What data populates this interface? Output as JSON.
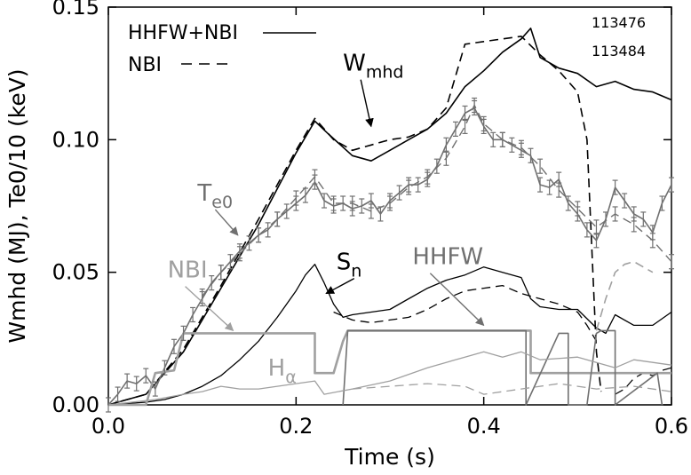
{
  "chart_data": {
    "type": "line",
    "title": "",
    "xlabel": "Time (s)",
    "ylabel": "Wmhd (MJ), Te0/10 (keV)",
    "xlim": [
      0.0,
      0.6
    ],
    "ylim": [
      0.0,
      0.15
    ],
    "xticks": [
      "0.0",
      "0.2",
      "0.4",
      "0.6"
    ],
    "yticks": [
      "0.00",
      "0.05",
      "0.10",
      "0.15"
    ],
    "grid": false,
    "legend_position": "top-left",
    "legend": [
      {
        "label": "HHFW+NBI",
        "style": "solid",
        "shot": "113476"
      },
      {
        "label": "NBI",
        "style": "dashed",
        "shot": "113484"
      }
    ],
    "annotations": [
      {
        "label": "W",
        "sub": "mhd",
        "color": "#000000",
        "x": 0.25,
        "y": 0.126,
        "arrow_to": [
          0.28,
          0.105
        ]
      },
      {
        "label": "T",
        "sub": "e0",
        "color": "#707070",
        "x": 0.095,
        "y": 0.077,
        "arrow_to": [
          0.138,
          0.064
        ]
      },
      {
        "label": "S",
        "sub": "n",
        "color": "#000000",
        "x": 0.243,
        "y": 0.051,
        "arrow_to": [
          0.232,
          0.042
        ]
      },
      {
        "label": "NBI",
        "sub": "",
        "color": "#a0a0a0",
        "x": 0.063,
        "y": 0.048,
        "arrow_to": [
          0.133,
          0.028
        ]
      },
      {
        "label": "HHFW",
        "sub": "",
        "color": "#707070",
        "x": 0.324,
        "y": 0.053,
        "arrow_to": [
          0.4,
          0.03
        ]
      },
      {
        "label": "H",
        "sub": "α",
        "color": "#a0a0a0",
        "x": 0.17,
        "y": 0.011,
        "arrow_to": null
      }
    ],
    "series": [
      {
        "key": "wmhd_hhfw",
        "color": "#000000",
        "dash": "solid",
        "width": 1.6,
        "x": [
          0.0,
          0.04,
          0.08,
          0.12,
          0.16,
          0.2,
          0.22,
          0.235,
          0.26,
          0.28,
          0.3,
          0.32,
          0.34,
          0.36,
          0.38,
          0.4,
          0.42,
          0.44,
          0.45,
          0.46,
          0.48,
          0.5,
          0.52,
          0.54,
          0.56,
          0.58,
          0.6
        ],
        "y": [
          0.0,
          0.004,
          0.02,
          0.044,
          0.068,
          0.095,
          0.107,
          0.102,
          0.094,
          0.092,
          0.096,
          0.1,
          0.104,
          0.11,
          0.12,
          0.126,
          0.133,
          0.138,
          0.142,
          0.131,
          0.127,
          0.125,
          0.12,
          0.122,
          0.119,
          0.118,
          0.115
        ]
      },
      {
        "key": "wmhd_nbi",
        "color": "#000000",
        "dash": "10,6",
        "width": 1.6,
        "x": [
          0.0,
          0.04,
          0.08,
          0.12,
          0.16,
          0.2,
          0.22,
          0.24,
          0.26,
          0.28,
          0.3,
          0.32,
          0.34,
          0.36,
          0.38,
          0.4,
          0.42,
          0.44,
          0.46,
          0.48,
          0.5,
          0.51,
          0.515,
          0.52,
          0.525
        ],
        "y": [
          0.0,
          0.004,
          0.021,
          0.045,
          0.07,
          0.096,
          0.108,
          0.1,
          0.096,
          0.098,
          0.1,
          0.101,
          0.104,
          0.112,
          0.136,
          0.137,
          0.138,
          0.139,
          0.132,
          0.126,
          0.118,
          0.1,
          0.06,
          0.02,
          0.005
        ]
      },
      {
        "key": "te0_hhfw",
        "color": "#707070",
        "dash": "solid",
        "width": 1.6,
        "x": [
          0.0,
          0.01,
          0.02,
          0.03,
          0.04,
          0.05,
          0.06,
          0.07,
          0.08,
          0.09,
          0.1,
          0.11,
          0.12,
          0.13,
          0.14,
          0.15,
          0.16,
          0.17,
          0.18,
          0.19,
          0.2,
          0.21,
          0.22,
          0.23,
          0.24,
          0.25,
          0.26,
          0.27,
          0.28,
          0.29,
          0.3,
          0.31,
          0.32,
          0.33,
          0.34,
          0.35,
          0.36,
          0.37,
          0.38,
          0.39,
          0.4,
          0.41,
          0.42,
          0.43,
          0.44,
          0.45,
          0.46,
          0.47,
          0.48,
          0.49,
          0.5,
          0.51,
          0.52,
          0.53,
          0.54,
          0.55,
          0.56,
          0.57,
          0.58,
          0.59,
          0.6
        ],
        "y": [
          0.0,
          0.004,
          0.009,
          0.008,
          0.011,
          0.006,
          0.014,
          0.022,
          0.027,
          0.034,
          0.04,
          0.046,
          0.05,
          0.054,
          0.058,
          0.061,
          0.064,
          0.066,
          0.07,
          0.073,
          0.076,
          0.079,
          0.084,
          0.077,
          0.075,
          0.076,
          0.074,
          0.075,
          0.077,
          0.072,
          0.077,
          0.08,
          0.083,
          0.083,
          0.085,
          0.09,
          0.098,
          0.104,
          0.11,
          0.112,
          0.105,
          0.1,
          0.1,
          0.098,
          0.096,
          0.094,
          0.083,
          0.082,
          0.085,
          0.076,
          0.072,
          0.066,
          0.062,
          0.07,
          0.082,
          0.077,
          0.072,
          0.07,
          0.065,
          0.076,
          0.083
        ]
      },
      {
        "key": "te0_nbi",
        "color": "#707070",
        "dash": "10,6",
        "width": 1.4,
        "x": [
          0.1,
          0.12,
          0.14,
          0.16,
          0.18,
          0.2,
          0.22,
          0.24,
          0.26,
          0.28,
          0.3,
          0.32,
          0.34,
          0.36,
          0.38,
          0.39,
          0.4,
          0.42,
          0.44,
          0.46,
          0.48,
          0.5,
          0.52,
          0.54,
          0.56,
          0.58,
          0.6
        ],
        "y": [
          0.041,
          0.05,
          0.057,
          0.064,
          0.07,
          0.078,
          0.086,
          0.076,
          0.076,
          0.073,
          0.076,
          0.082,
          0.086,
          0.093,
          0.105,
          0.113,
          0.106,
          0.1,
          0.097,
          0.09,
          0.081,
          0.074,
          0.067,
          0.072,
          0.068,
          0.062,
          0.054
        ]
      },
      {
        "key": "sn_hhfw",
        "color": "#000000",
        "dash": "solid",
        "width": 1.3,
        "x": [
          0.0,
          0.04,
          0.06,
          0.08,
          0.1,
          0.12,
          0.14,
          0.16,
          0.18,
          0.2,
          0.21,
          0.22,
          0.23,
          0.24,
          0.25,
          0.26,
          0.28,
          0.3,
          0.32,
          0.34,
          0.36,
          0.38,
          0.4,
          0.42,
          0.44,
          0.45,
          0.46,
          0.48,
          0.5,
          0.52,
          0.53,
          0.54,
          0.56,
          0.58,
          0.6
        ],
        "y": [
          0.0,
          0.001,
          0.002,
          0.004,
          0.007,
          0.011,
          0.017,
          0.024,
          0.033,
          0.043,
          0.049,
          0.053,
          0.046,
          0.038,
          0.033,
          0.034,
          0.035,
          0.036,
          0.04,
          0.044,
          0.047,
          0.049,
          0.052,
          0.05,
          0.048,
          0.04,
          0.037,
          0.036,
          0.036,
          0.029,
          0.027,
          0.034,
          0.03,
          0.03,
          0.035
        ]
      },
      {
        "key": "sn_nbi",
        "color": "#000000",
        "dash": "10,6",
        "width": 1.3,
        "x": [
          0.24,
          0.26,
          0.28,
          0.3,
          0.32,
          0.34,
          0.36,
          0.38,
          0.4,
          0.42,
          0.44,
          0.46,
          0.48,
          0.5,
          0.51,
          0.52
        ],
        "y": [
          0.035,
          0.032,
          0.031,
          0.032,
          0.033,
          0.036,
          0.04,
          0.043,
          0.044,
          0.045,
          0.042,
          0.04,
          0.038,
          0.035,
          0.03,
          0.024
        ]
      },
      {
        "key": "sn_late_nbi",
        "color": "#000000",
        "dash": "10,6",
        "width": 1.2,
        "x": [
          0.54,
          0.55,
          0.56,
          0.57,
          0.58,
          0.59,
          0.6
        ],
        "y": [
          0.004,
          0.006,
          0.01,
          0.012,
          0.011,
          0.013,
          0.014
        ]
      },
      {
        "key": "nbi_power",
        "color": "#a0a0a0",
        "dash": "solid",
        "width": 2.6,
        "x": [
          0.0,
          0.04,
          0.05,
          0.07,
          0.075,
          0.08,
          0.22,
          0.22,
          0.24,
          0.25,
          0.255,
          0.45,
          0.45,
          0.6
        ],
        "y": [
          0.0,
          0.0,
          0.012,
          0.013,
          0.02,
          0.027,
          0.027,
          0.012,
          0.012,
          0.024,
          0.028,
          0.028,
          0.012,
          0.012
        ]
      },
      {
        "key": "hhfw_power",
        "color": "#707070",
        "dash": "solid",
        "width": 1.6,
        "x": [
          0.25,
          0.255,
          0.445,
          0.445,
          0.48,
          0.49,
          0.49,
          0.51,
          0.52,
          0.525,
          0.54,
          0.54,
          0.585,
          0.59
        ],
        "y": [
          0.0,
          0.028,
          0.028,
          0.0,
          0.027,
          0.027,
          0.0,
          0.0,
          0.027,
          0.028,
          0.028,
          0.0,
          0.012,
          0.0
        ]
      },
      {
        "key": "h_alpha_hhfw",
        "color": "#a0a0a0",
        "dash": "solid",
        "width": 1.3,
        "x": [
          0.0,
          0.05,
          0.08,
          0.1,
          0.12,
          0.14,
          0.16,
          0.18,
          0.2,
          0.22,
          0.23,
          0.26,
          0.3,
          0.34,
          0.36,
          0.38,
          0.4,
          0.42,
          0.44,
          0.46,
          0.5,
          0.54,
          0.56,
          0.58,
          0.6
        ],
        "y": [
          0.0,
          0.002,
          0.004,
          0.005,
          0.007,
          0.006,
          0.006,
          0.007,
          0.008,
          0.009,
          0.004,
          0.006,
          0.009,
          0.014,
          0.016,
          0.018,
          0.02,
          0.018,
          0.02,
          0.017,
          0.018,
          0.014,
          0.017,
          0.016,
          0.015
        ]
      },
      {
        "key": "h_alpha_nbi",
        "color": "#a0a0a0",
        "dash": "10,6",
        "width": 1.3,
        "x": [
          0.26,
          0.3,
          0.34,
          0.38,
          0.4,
          0.44,
          0.48,
          0.52,
          0.56,
          0.6
        ],
        "y": [
          0.006,
          0.007,
          0.008,
          0.007,
          0.004,
          0.006,
          0.008,
          0.006,
          0.007,
          0.005
        ]
      },
      {
        "key": "nbi_late_dashed",
        "color": "#a0a0a0",
        "dash": "10,6",
        "width": 1.6,
        "x": [
          0.52,
          0.53,
          0.54,
          0.55,
          0.56,
          0.57,
          0.58
        ],
        "y": [
          0.028,
          0.04,
          0.05,
          0.053,
          0.054,
          0.052,
          0.05
        ]
      }
    ]
  }
}
